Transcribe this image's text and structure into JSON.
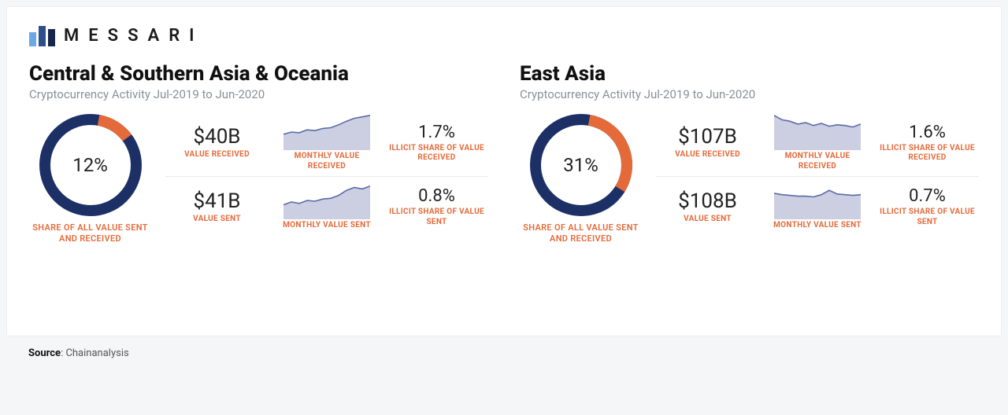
{
  "brand": {
    "name": "MESSARI",
    "bar_colors": [
      "#6aa9e6",
      "#2f4e8c",
      "#17264a"
    ]
  },
  "colors": {
    "primary": "#1d3066",
    "accent": "#e46a3a",
    "spark_fill": "#c3c7dc",
    "spark_stroke": "#5a6aa8",
    "text_muted": "#8a8f98",
    "divider": "#e6e8eb",
    "background": "#ffffff"
  },
  "subtitle": "Cryptocurrency Activity Jul-2019 to Jun-2020",
  "donut_label": "SHARE OF ALL VALUE SENT AND RECEIVED",
  "labels": {
    "value_received": "VALUE RECEIVED",
    "value_sent": "VALUE SENT",
    "monthly_value_received": "MONTHLY VALUE RECEIVED",
    "monthly_value_sent": "MONTHLY VALUE SENT",
    "illicit_received": "ILLICIT SHARE OF VALUE RECEIVED",
    "illicit_sent": "ILLICIT SHARE OF VALUE SENT"
  },
  "regions": [
    {
      "title": "Central & Southern Asia & Oceania",
      "share_pct": 12,
      "value_received": "$40B",
      "value_sent": "$41B",
      "illicit_received": "1.7%",
      "illicit_sent": "0.8%",
      "spark_received": [
        22,
        25,
        24,
        28,
        27,
        30,
        31,
        35,
        40,
        44,
        46,
        48
      ],
      "spark_sent": [
        20,
        24,
        22,
        26,
        25,
        28,
        29,
        33,
        40,
        44,
        42,
        46
      ]
    },
    {
      "title": "East Asia",
      "share_pct": 31,
      "value_received": "$107B",
      "value_sent": "$108B",
      "illicit_received": "1.6%",
      "illicit_sent": "0.7%",
      "spark_received": [
        48,
        42,
        40,
        36,
        38,
        34,
        37,
        33,
        35,
        34,
        32,
        36
      ],
      "spark_sent": [
        36,
        34,
        33,
        32,
        32,
        31,
        34,
        40,
        35,
        34,
        33,
        34
      ]
    }
  ],
  "source": {
    "label": "Source",
    "value": "Chainanalysis"
  },
  "donut": {
    "size": 130,
    "thickness": 14
  },
  "spark": {
    "w": 110,
    "h": 46,
    "ymax": 50
  }
}
